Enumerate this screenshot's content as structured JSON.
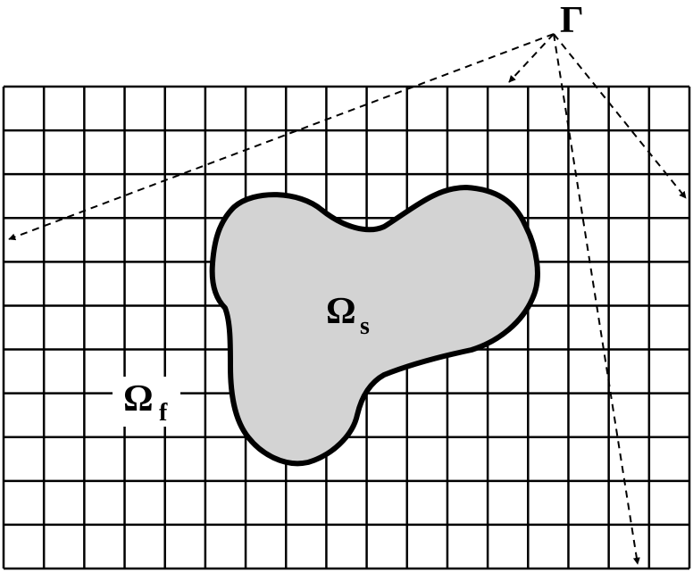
{
  "labels": {
    "boundary": "Γ",
    "solid_main": "Ω",
    "solid_sub": "s",
    "fluid_main": "Ω",
    "fluid_sub": "f"
  },
  "colors": {
    "grid_line": "#000000",
    "solid_fill": "#d3d3d3",
    "solid_outline": "#000000",
    "arrow": "#000000",
    "background": "#ffffff"
  },
  "grid": {
    "columns": 17,
    "rows": 11
  },
  "arrows": {
    "style": "dashed",
    "count": 4
  }
}
